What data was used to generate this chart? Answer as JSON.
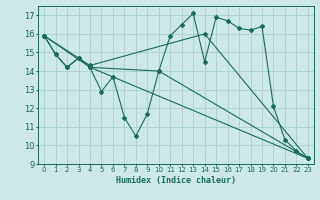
{
  "background_color": "#cde8e8",
  "grid_color": "#aacfcf",
  "line_color": "#1a6b5a",
  "marker_color": "#1a6b5a",
  "xlabel": "Humidex (Indice chaleur)",
  "ylim": [
    9,
    17.5
  ],
  "xlim": [
    -0.5,
    23.5
  ],
  "yticks": [
    9,
    10,
    11,
    12,
    13,
    14,
    15,
    16,
    17
  ],
  "xticks": [
    0,
    1,
    2,
    3,
    4,
    5,
    6,
    7,
    8,
    9,
    10,
    11,
    12,
    13,
    14,
    15,
    16,
    17,
    18,
    19,
    20,
    21,
    22,
    23
  ],
  "lines": [
    {
      "x": [
        0,
        1,
        2,
        3,
        4,
        5,
        6,
        7,
        8,
        9,
        10,
        11,
        12,
        13,
        14,
        15,
        16,
        17,
        18,
        19,
        20,
        21,
        22,
        23
      ],
      "y": [
        15.9,
        14.9,
        14.2,
        14.7,
        14.2,
        12.9,
        13.7,
        11.5,
        10.5,
        11.7,
        14.0,
        15.9,
        16.5,
        17.1,
        14.5,
        16.9,
        16.7,
        16.3,
        16.2,
        16.4,
        12.1,
        10.3,
        9.7,
        9.3
      ]
    },
    {
      "x": [
        0,
        1,
        2,
        3,
        4,
        23
      ],
      "y": [
        15.9,
        14.9,
        14.2,
        14.7,
        14.2,
        9.3
      ]
    },
    {
      "x": [
        0,
        4,
        10,
        23
      ],
      "y": [
        15.9,
        14.2,
        14.0,
        9.3
      ]
    },
    {
      "x": [
        0,
        4,
        14,
        23
      ],
      "y": [
        15.9,
        14.3,
        16.0,
        9.3
      ]
    }
  ]
}
